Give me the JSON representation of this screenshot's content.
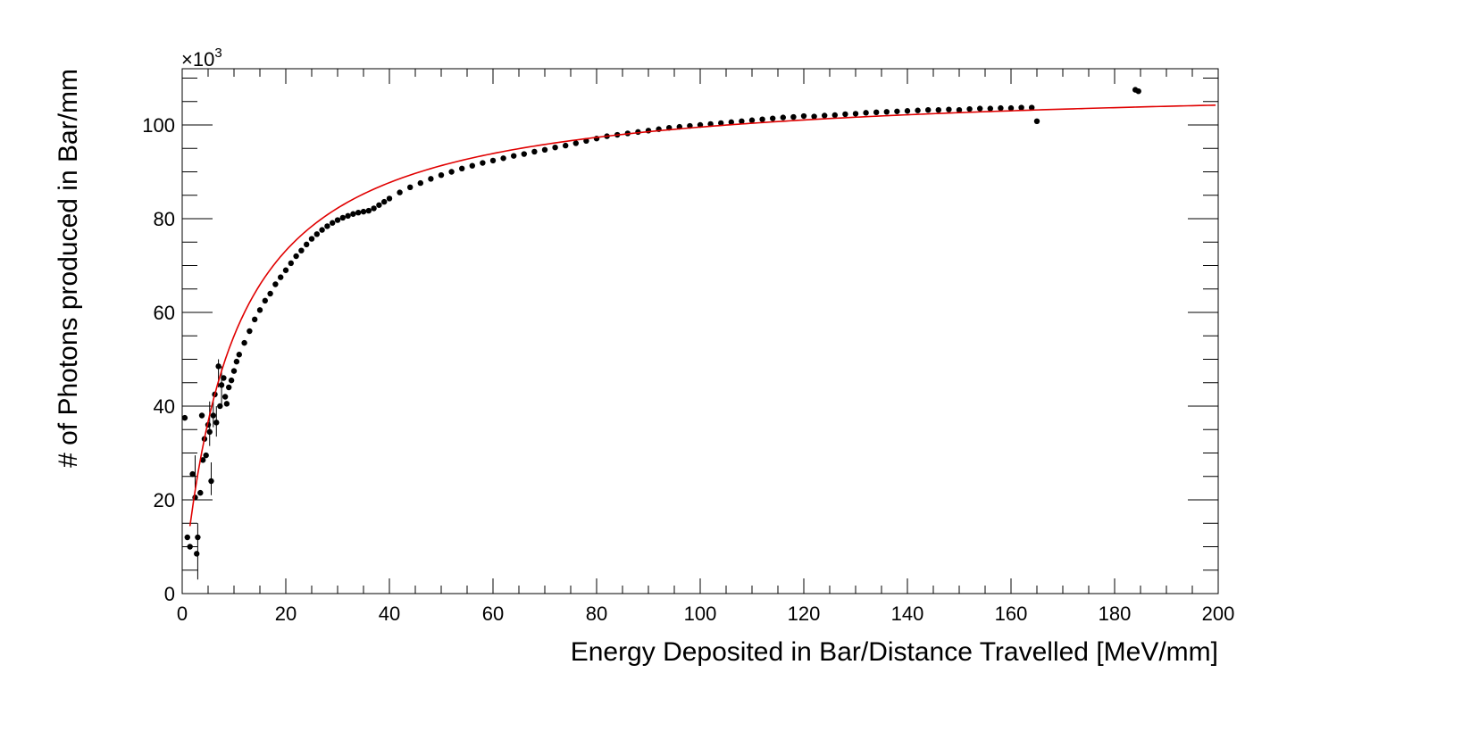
{
  "chart_data": {
    "type": "scatter",
    "title": "",
    "xlabel": "Energy Deposited in Bar/Distance Travelled [MeV/mm]",
    "ylabel": "# of Photons produced in Bar/mm",
    "y_multiplier_label": "×10",
    "y_multiplier_exponent": "3",
    "xlim": [
      0,
      200
    ],
    "ylim": [
      0,
      112
    ],
    "x_ticks": [
      "0",
      "20",
      "40",
      "60",
      "80",
      "100",
      "120",
      "140",
      "160",
      "180",
      "200"
    ],
    "y_ticks": [
      "0",
      "20",
      "40",
      "60",
      "80",
      "100"
    ],
    "grid": false,
    "legend": "none",
    "colors": {
      "data": "#000000",
      "fit": "#e00000"
    },
    "series": [
      {
        "kind": "points_with_errors",
        "points": [
          [
            0.5,
            37.5
          ],
          [
            1.0,
            12.0
          ],
          [
            1.5,
            10.0
          ],
          [
            2.0,
            25.5
          ],
          [
            2.5,
            20.5
          ],
          [
            2.8,
            8.5
          ],
          [
            3.0,
            12.0
          ],
          [
            3.5,
            21.5
          ],
          [
            3.8,
            38.0
          ],
          [
            4.0,
            28.5
          ],
          [
            4.3,
            33.0
          ],
          [
            4.6,
            29.5
          ],
          [
            5.0,
            36.0
          ],
          [
            5.3,
            34.5
          ],
          [
            5.6,
            24.0
          ],
          [
            6.0,
            38.0
          ],
          [
            6.3,
            42.5
          ],
          [
            6.6,
            36.5
          ],
          [
            7.0,
            48.5
          ],
          [
            7.3,
            40.0
          ],
          [
            7.6,
            44.5
          ],
          [
            8.0,
            46.0
          ],
          [
            8.3,
            42.0
          ],
          [
            8.6,
            40.5
          ],
          [
            9.0,
            44.0
          ],
          [
            9.5,
            45.5
          ],
          [
            10.0,
            47.5
          ],
          [
            10.5,
            49.5
          ],
          [
            11.0,
            51.0
          ],
          [
            12.0,
            53.5
          ],
          [
            13.0,
            56.0
          ],
          [
            14.0,
            58.5
          ],
          [
            15.0,
            60.5
          ],
          [
            16.0,
            62.5
          ],
          [
            17.0,
            64.0
          ],
          [
            18.0,
            66.0
          ],
          [
            19.0,
            67.5
          ],
          [
            20.0,
            69.0
          ],
          [
            21.0,
            70.5
          ],
          [
            22.0,
            72.0
          ],
          [
            23.0,
            73.2
          ],
          [
            24.0,
            74.5
          ],
          [
            25.0,
            75.7
          ],
          [
            26.0,
            76.7
          ],
          [
            27.0,
            77.6
          ],
          [
            28.0,
            78.4
          ],
          [
            29.0,
            79.1
          ],
          [
            30.0,
            79.7
          ],
          [
            31.0,
            80.2
          ],
          [
            32.0,
            80.6
          ],
          [
            33.0,
            81.0
          ],
          [
            34.0,
            81.3
          ],
          [
            35.0,
            81.5
          ],
          [
            36.0,
            81.7
          ],
          [
            37.0,
            82.2
          ],
          [
            38.0,
            82.9
          ],
          [
            39.0,
            83.6
          ],
          [
            40.0,
            84.3
          ],
          [
            42.0,
            85.6
          ],
          [
            44.0,
            86.7
          ],
          [
            46.0,
            87.6
          ],
          [
            48.0,
            88.5
          ],
          [
            50.0,
            89.3
          ],
          [
            52.0,
            90.0
          ],
          [
            54.0,
            90.7
          ],
          [
            56.0,
            91.3
          ],
          [
            58.0,
            91.9
          ],
          [
            60.0,
            92.4
          ],
          [
            62.0,
            92.9
          ],
          [
            64.0,
            93.4
          ],
          [
            66.0,
            93.8
          ],
          [
            68.0,
            94.3
          ],
          [
            70.0,
            94.7
          ],
          [
            72.0,
            95.2
          ],
          [
            74.0,
            95.6
          ],
          [
            76.0,
            96.1
          ],
          [
            78.0,
            96.6
          ],
          [
            80.0,
            97.1
          ],
          [
            82.0,
            97.6
          ],
          [
            84.0,
            97.9
          ],
          [
            86.0,
            98.2
          ],
          [
            88.0,
            98.5
          ],
          [
            90.0,
            98.8
          ],
          [
            92.0,
            99.1
          ],
          [
            94.0,
            99.4
          ],
          [
            96.0,
            99.6
          ],
          [
            98.0,
            99.8
          ],
          [
            100.0,
            100.0
          ],
          [
            102.0,
            100.2
          ],
          [
            104.0,
            100.4
          ],
          [
            106.0,
            100.6
          ],
          [
            108.0,
            100.8
          ],
          [
            110.0,
            101.0
          ],
          [
            112.0,
            101.2
          ],
          [
            114.0,
            101.4
          ],
          [
            116.0,
            101.6
          ],
          [
            118.0,
            101.7
          ],
          [
            120.0,
            101.9
          ],
          [
            122.0,
            101.8
          ],
          [
            124.0,
            102.0
          ],
          [
            126.0,
            102.1
          ],
          [
            128.0,
            102.3
          ],
          [
            130.0,
            102.4
          ],
          [
            132.0,
            102.6
          ],
          [
            134.0,
            102.7
          ],
          [
            136.0,
            102.8
          ],
          [
            138.0,
            102.9
          ],
          [
            140.0,
            103.0
          ],
          [
            142.0,
            103.1
          ],
          [
            144.0,
            103.2
          ],
          [
            146.0,
            103.2
          ],
          [
            148.0,
            103.3
          ],
          [
            150.0,
            103.2
          ],
          [
            152.0,
            103.4
          ],
          [
            154.0,
            103.5
          ],
          [
            156.0,
            103.5
          ],
          [
            158.0,
            103.6
          ],
          [
            160.0,
            103.6
          ],
          [
            162.0,
            103.7
          ],
          [
            164.0,
            103.7
          ],
          [
            165.0,
            100.8
          ],
          [
            184.0,
            107.5
          ],
          [
            184.6,
            107.2
          ]
        ],
        "error_bars": [
          [
            2.5,
            22.5,
            29.5
          ],
          [
            3.0,
            3.0,
            15.0
          ],
          [
            5.3,
            31.5,
            41.0
          ],
          [
            5.6,
            21.0,
            28.0
          ],
          [
            6.0,
            35.5,
            41.0
          ],
          [
            6.6,
            33.5,
            40.0
          ],
          [
            7.0,
            44.0,
            50.0
          ],
          [
            7.6,
            40.0,
            48.5
          ]
        ]
      },
      {
        "kind": "fit_curve",
        "x_range": [
          1.5,
          199.5
        ],
        "asymptote": 109.4,
        "scale": 9.9
      }
    ]
  }
}
